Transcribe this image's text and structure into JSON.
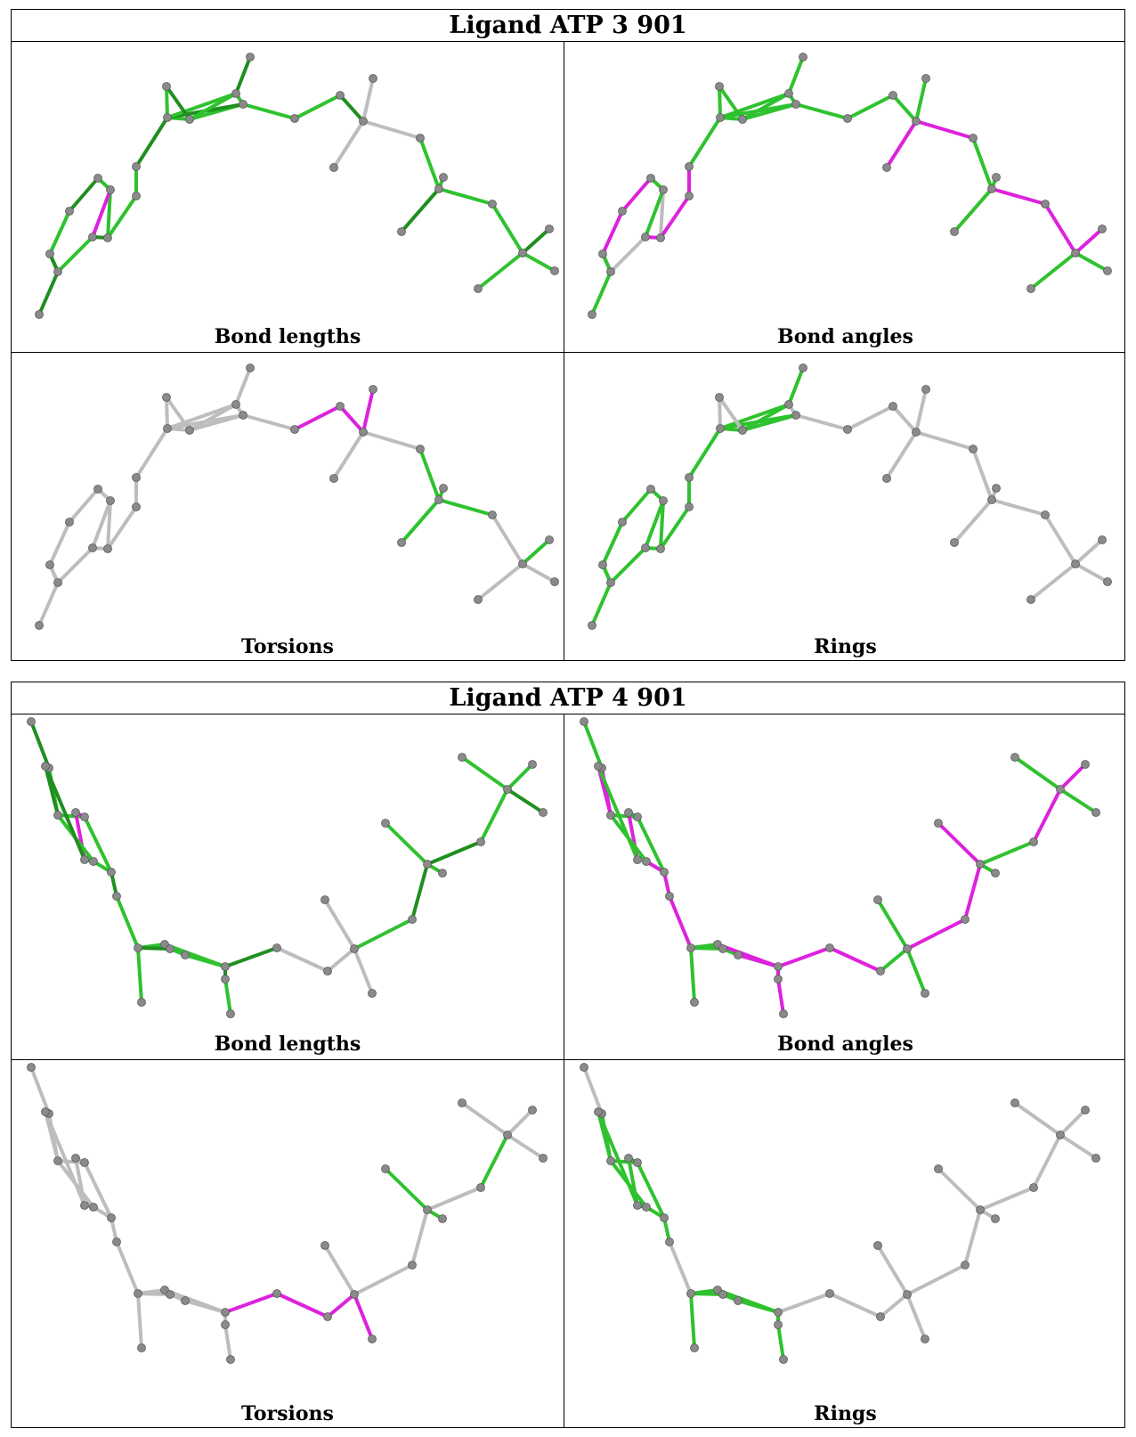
{
  "colors": {
    "ok": "#2fc22f",
    "okDark": "#1f8f1f",
    "outlier": "#dd22dd",
    "neutral": "#bdbdbd",
    "atom": "#8a8a8a"
  },
  "blocks": [
    {
      "title": "Ligand ATP 3 901",
      "panels": [
        {
          "caption": "Bond lengths"
        },
        {
          "caption": "Bond angles"
        },
        {
          "caption": "Torsions"
        },
        {
          "caption": "Rings"
        }
      ]
    },
    {
      "title": "Ligand ATP 4 901",
      "panels": [
        {
          "caption": "Bond lengths"
        },
        {
          "caption": "Bond angles"
        },
        {
          "caption": "Torsions"
        },
        {
          "caption": "Rings"
        }
      ]
    }
  ]
}
